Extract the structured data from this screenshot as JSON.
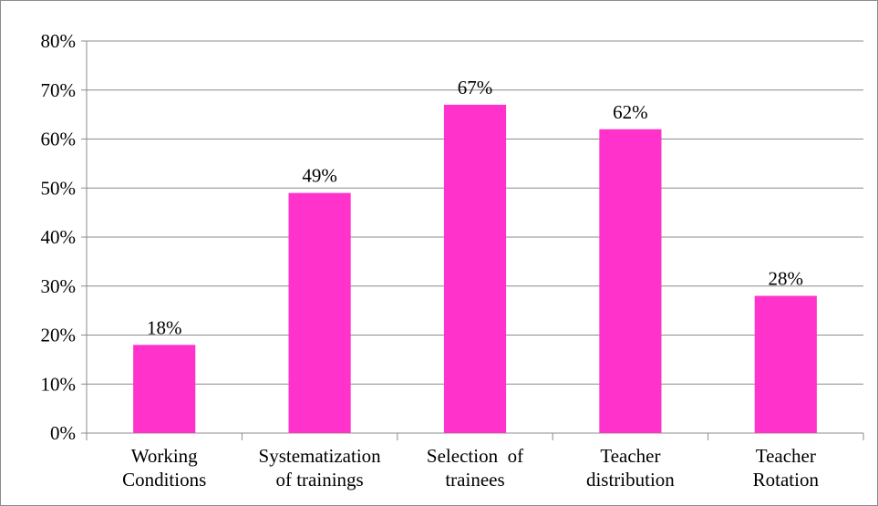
{
  "chart_data": {
    "type": "bar",
    "categories": [
      [
        "Working",
        "Conditions"
      ],
      [
        "Systematization",
        "of trainings"
      ],
      [
        "Selection  of",
        "trainees"
      ],
      [
        "Teacher",
        "distribution"
      ],
      [
        "Teacher",
        "Rotation"
      ]
    ],
    "values": [
      18,
      49,
      67,
      62,
      28
    ],
    "data_labels": [
      "18%",
      "49%",
      "67%",
      "62%",
      "28%"
    ],
    "y_ticks": [
      "0%",
      "10%",
      "20%",
      "30%",
      "40%",
      "50%",
      "60%",
      "70%",
      "80%"
    ],
    "ylim": [
      0,
      80
    ],
    "y_unit": "%",
    "title": "",
    "xlabel": "",
    "ylabel": "",
    "grid": true,
    "legend": "none",
    "bar_color": "#ff33cc",
    "grid_color": "#8c8c8c",
    "axis_color": "#8c8c8c"
  }
}
